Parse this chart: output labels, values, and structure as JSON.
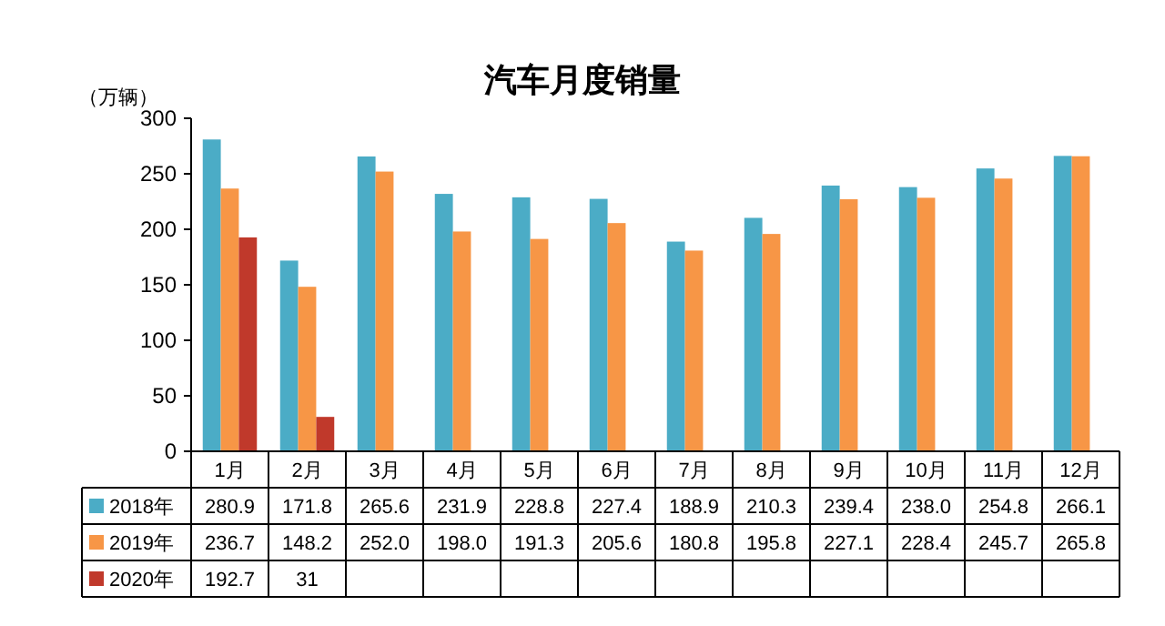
{
  "chart_data": {
    "type": "bar",
    "title": "汽车月度销量",
    "ylabel": "（万辆）",
    "categories": [
      "1月",
      "2月",
      "3月",
      "4月",
      "5月",
      "6月",
      "7月",
      "8月",
      "9月",
      "10月",
      "11月",
      "12月"
    ],
    "ylim": [
      0,
      300
    ],
    "yticks": [
      0,
      50,
      100,
      150,
      200,
      250,
      300
    ],
    "grid": false,
    "legend": "bottom left",
    "data_labels": true,
    "series": [
      {
        "name": "2018年",
        "color": "#4bacc6",
        "values": [
          280.9,
          171.8,
          265.6,
          231.9,
          228.8,
          227.4,
          188.9,
          210.3,
          239.4,
          238.0,
          254.8,
          266.1
        ],
        "value_labels": [
          "280.9",
          "171.8",
          "265.6",
          "231.9",
          "228.8",
          "227.4",
          "188.9",
          "210.3",
          "239.4",
          "238.0",
          "254.8",
          "266.1"
        ]
      },
      {
        "name": "2019年",
        "color": "#f79646",
        "values": [
          236.7,
          148.2,
          252.0,
          198.0,
          191.3,
          205.6,
          180.8,
          195.8,
          227.1,
          228.4,
          245.7,
          265.8
        ],
        "value_labels": [
          "236.7",
          "148.2",
          "252.0",
          "198.0",
          "191.3",
          "205.6",
          "180.8",
          "195.8",
          "227.1",
          "228.4",
          "245.7",
          "265.8"
        ]
      },
      {
        "name": "2020年",
        "color": "#c0392b",
        "values": [
          192.7,
          31,
          null,
          null,
          null,
          null,
          null,
          null,
          null,
          null,
          null,
          null
        ],
        "value_labels": [
          "192.7",
          "31",
          null,
          null,
          null,
          null,
          null,
          null,
          null,
          null,
          null,
          null
        ]
      }
    ]
  }
}
